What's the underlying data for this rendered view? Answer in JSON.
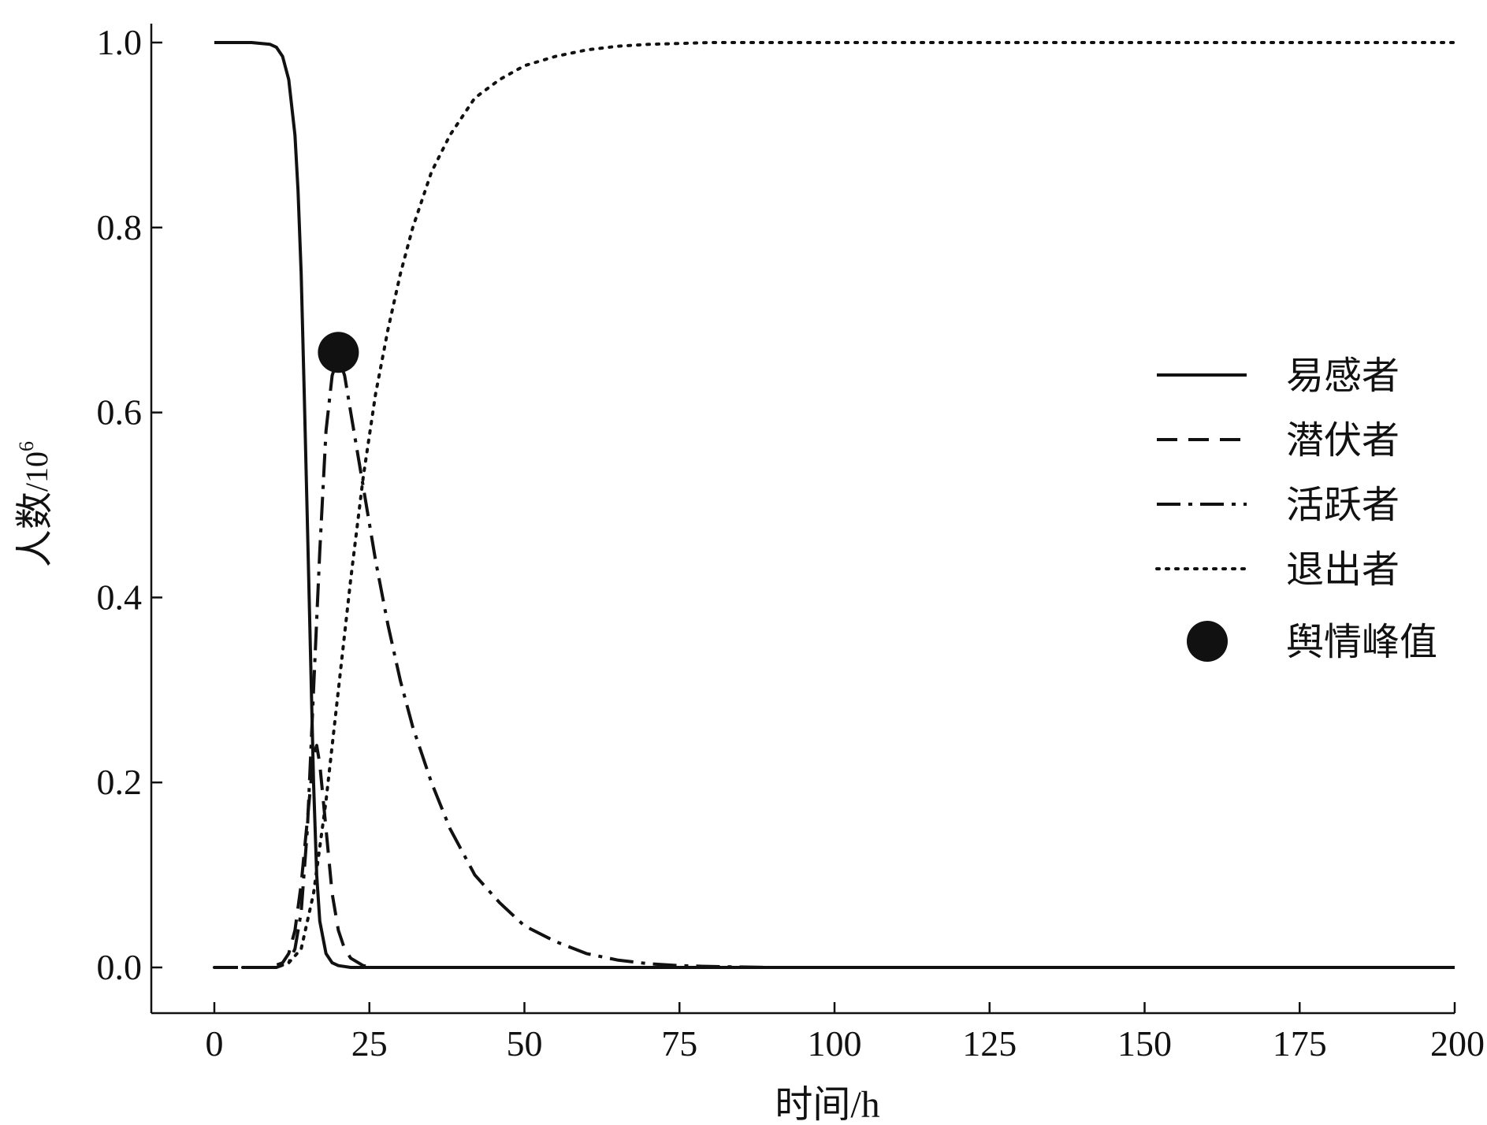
{
  "chart_data": {
    "type": "line",
    "xlabel": "时间/h",
    "ylabel_main": "人数",
    "ylabel_unit": "/10",
    "ylabel_exp": "6",
    "xlim": [
      -10,
      200
    ],
    "ylim": [
      -0.1,
      1.0
    ],
    "x_ticks": [
      0,
      25,
      50,
      75,
      100,
      125,
      150,
      175,
      200
    ],
    "y_ticks": [
      0.0,
      0.2,
      0.4,
      0.6,
      0.8,
      1.0
    ],
    "grid": false,
    "legend_position": "right",
    "series": [
      {
        "name": "易感者",
        "style": "solid",
        "points": [
          [
            0,
            1.0
          ],
          [
            6,
            1.0
          ],
          [
            9,
            0.998
          ],
          [
            10,
            0.995
          ],
          [
            11,
            0.985
          ],
          [
            12,
            0.96
          ],
          [
            13,
            0.9
          ],
          [
            13.5,
            0.84
          ],
          [
            14,
            0.75
          ],
          [
            14.5,
            0.62
          ],
          [
            15,
            0.48
          ],
          [
            15.5,
            0.34
          ],
          [
            16,
            0.2
          ],
          [
            16.5,
            0.1
          ],
          [
            17,
            0.05
          ],
          [
            18,
            0.015
          ],
          [
            19,
            0.005
          ],
          [
            20,
            0.002
          ],
          [
            22,
            0.0
          ],
          [
            200,
            0.0
          ]
        ]
      },
      {
        "name": "潜伏者",
        "style": "dashed",
        "points": [
          [
            0,
            0.0
          ],
          [
            9,
            0.0
          ],
          [
            11,
            0.005
          ],
          [
            12,
            0.015
          ],
          [
            13,
            0.04
          ],
          [
            14,
            0.09
          ],
          [
            15,
            0.16
          ],
          [
            16,
            0.23
          ],
          [
            16.5,
            0.24
          ],
          [
            17,
            0.22
          ],
          [
            18,
            0.15
          ],
          [
            19,
            0.08
          ],
          [
            20,
            0.04
          ],
          [
            21,
            0.02
          ],
          [
            22,
            0.01
          ],
          [
            24,
            0.002
          ],
          [
            26,
            0.0
          ],
          [
            200,
            0.0
          ]
        ]
      },
      {
        "name": "活跃者",
        "style": "dashdot",
        "points": [
          [
            0,
            0.0
          ],
          [
            10,
            0.0
          ],
          [
            12,
            0.005
          ],
          [
            13,
            0.02
          ],
          [
            14,
            0.06
          ],
          [
            15,
            0.15
          ],
          [
            16,
            0.3
          ],
          [
            17,
            0.45
          ],
          [
            18,
            0.58
          ],
          [
            19,
            0.64
          ],
          [
            20,
            0.66
          ],
          [
            21,
            0.64
          ],
          [
            22,
            0.6
          ],
          [
            24,
            0.52
          ],
          [
            26,
            0.44
          ],
          [
            28,
            0.37
          ],
          [
            30,
            0.31
          ],
          [
            32,
            0.26
          ],
          [
            35,
            0.2
          ],
          [
            38,
            0.15
          ],
          [
            42,
            0.1
          ],
          [
            46,
            0.07
          ],
          [
            50,
            0.045
          ],
          [
            55,
            0.028
          ],
          [
            60,
            0.015
          ],
          [
            65,
            0.008
          ],
          [
            70,
            0.004
          ],
          [
            75,
            0.002
          ],
          [
            80,
            0.001
          ],
          [
            90,
            0.0
          ],
          [
            200,
            0.0
          ]
        ]
      },
      {
        "name": "退出者",
        "style": "dotted",
        "points": [
          [
            0,
            0.0
          ],
          [
            10,
            0.0
          ],
          [
            12,
            0.005
          ],
          [
            14,
            0.02
          ],
          [
            16,
            0.08
          ],
          [
            18,
            0.18
          ],
          [
            20,
            0.3
          ],
          [
            22,
            0.42
          ],
          [
            24,
            0.53
          ],
          [
            26,
            0.62
          ],
          [
            28,
            0.69
          ],
          [
            30,
            0.75
          ],
          [
            32,
            0.8
          ],
          [
            35,
            0.86
          ],
          [
            38,
            0.9
          ],
          [
            42,
            0.94
          ],
          [
            46,
            0.96
          ],
          [
            50,
            0.975
          ],
          [
            55,
            0.985
          ],
          [
            60,
            0.992
          ],
          [
            65,
            0.996
          ],
          [
            70,
            0.998
          ],
          [
            80,
            1.0
          ],
          [
            200,
            1.0
          ]
        ]
      }
    ],
    "peak": {
      "name": "舆情峰值",
      "x": 20,
      "y": 0.665
    }
  }
}
